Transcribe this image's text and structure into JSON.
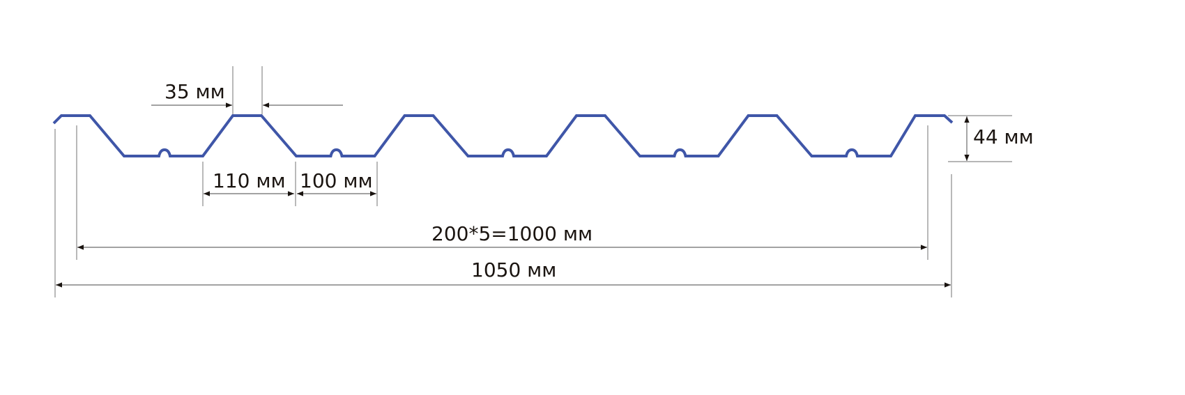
{
  "colors": {
    "profile": "#3f56a8",
    "dimension": "#8a8a8a",
    "arrow": "#1a1410",
    "text": "#1a1410"
  },
  "dimensions": {
    "top_width": "35 мм",
    "trough_to_crest": "110 мм",
    "trough_width": "100 мм",
    "height": "44 мм",
    "working_width": "200*5=1000 мм",
    "total_width": "1050 мм"
  }
}
